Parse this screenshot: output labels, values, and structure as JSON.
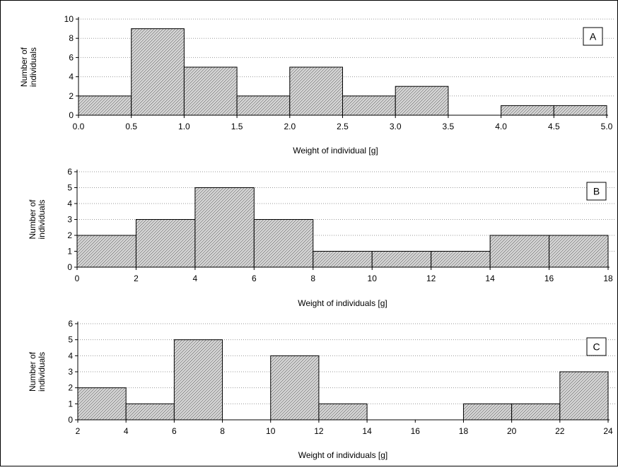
{
  "chart_data": [
    {
      "type": "bar",
      "panel_label": "A",
      "xlabel": "Weight of individual [g]",
      "ylabel": "Number of individuals",
      "ylim": [
        0,
        10
      ],
      "y_ticks": [
        0,
        2,
        4,
        6,
        8,
        10
      ],
      "xlim": [
        0,
        5
      ],
      "x_ticks": [
        "0.0",
        "0.5",
        "1.0",
        "1.5",
        "2.0",
        "2.5",
        "3.0",
        "3.5",
        "4.0",
        "4.5",
        "5.0"
      ],
      "x_tick_values": [
        0,
        0.5,
        1,
        1.5,
        2,
        2.5,
        3,
        3.5,
        4,
        4.5,
        5
      ],
      "bins": [
        {
          "x0": 0.0,
          "x1": 0.5,
          "value": 2
        },
        {
          "x0": 0.5,
          "x1": 1.0,
          "value": 9
        },
        {
          "x0": 1.0,
          "x1": 1.5,
          "value": 5
        },
        {
          "x0": 1.5,
          "x1": 2.0,
          "value": 2
        },
        {
          "x0": 2.0,
          "x1": 2.5,
          "value": 5
        },
        {
          "x0": 2.5,
          "x1": 3.0,
          "value": 2
        },
        {
          "x0": 3.0,
          "x1": 3.5,
          "value": 3
        },
        {
          "x0": 3.5,
          "x1": 4.0,
          "value": 0
        },
        {
          "x0": 4.0,
          "x1": 4.5,
          "value": 1
        },
        {
          "x0": 4.5,
          "x1": 5.0,
          "value": 1
        }
      ],
      "grid": true
    },
    {
      "type": "bar",
      "panel_label": "B",
      "xlabel": "Weight of individuals [g]",
      "ylabel": "Number of individuals",
      "ylim": [
        0,
        6
      ],
      "y_ticks": [
        0,
        1,
        2,
        3,
        4,
        5,
        6
      ],
      "xlim": [
        0,
        18
      ],
      "x_ticks": [
        "0",
        "2",
        "4",
        "6",
        "8",
        "10",
        "12",
        "14",
        "16",
        "18"
      ],
      "x_tick_values": [
        0,
        2,
        4,
        6,
        8,
        10,
        12,
        14,
        16,
        18
      ],
      "bins": [
        {
          "x0": 0,
          "x1": 2,
          "value": 2
        },
        {
          "x0": 2,
          "x1": 4,
          "value": 3
        },
        {
          "x0": 4,
          "x1": 6,
          "value": 5
        },
        {
          "x0": 6,
          "x1": 8,
          "value": 3
        },
        {
          "x0": 8,
          "x1": 10,
          "value": 1
        },
        {
          "x0": 10,
          "x1": 12,
          "value": 1
        },
        {
          "x0": 12,
          "x1": 14,
          "value": 1
        },
        {
          "x0": 14,
          "x1": 16,
          "value": 2
        },
        {
          "x0": 16,
          "x1": 18,
          "value": 2
        }
      ],
      "grid": true
    },
    {
      "type": "bar",
      "panel_label": "C",
      "xlabel": "Weight of individuals [g]",
      "ylabel": "Number of individuals",
      "ylim": [
        0,
        6
      ],
      "y_ticks": [
        0,
        1,
        2,
        3,
        4,
        5,
        6
      ],
      "xlim": [
        2,
        24
      ],
      "x_ticks": [
        "2",
        "4",
        "6",
        "8",
        "10",
        "12",
        "14",
        "16",
        "18",
        "20",
        "22",
        "24"
      ],
      "x_tick_values": [
        2,
        4,
        6,
        8,
        10,
        12,
        14,
        16,
        18,
        20,
        22,
        24
      ],
      "bins": [
        {
          "x0": 2,
          "x1": 4,
          "value": 2
        },
        {
          "x0": 4,
          "x1": 6,
          "value": 1
        },
        {
          "x0": 6,
          "x1": 8,
          "value": 5
        },
        {
          "x0": 8,
          "x1": 10,
          "value": 0
        },
        {
          "x0": 10,
          "x1": 12,
          "value": 4
        },
        {
          "x0": 12,
          "x1": 14,
          "value": 1
        },
        {
          "x0": 14,
          "x1": 16,
          "value": 0
        },
        {
          "x0": 16,
          "x1": 18,
          "value": 0
        },
        {
          "x0": 18,
          "x1": 20,
          "value": 1
        },
        {
          "x0": 20,
          "x1": 22,
          "value": 1
        },
        {
          "x0": 22,
          "x1": 24,
          "value": 3
        }
      ],
      "grid": true
    }
  ],
  "style": {
    "bar_fill": "#d8d8d8",
    "bar_hatch": "#555555",
    "grid_color": "#9a9a9a",
    "axis_color": "#000000"
  }
}
